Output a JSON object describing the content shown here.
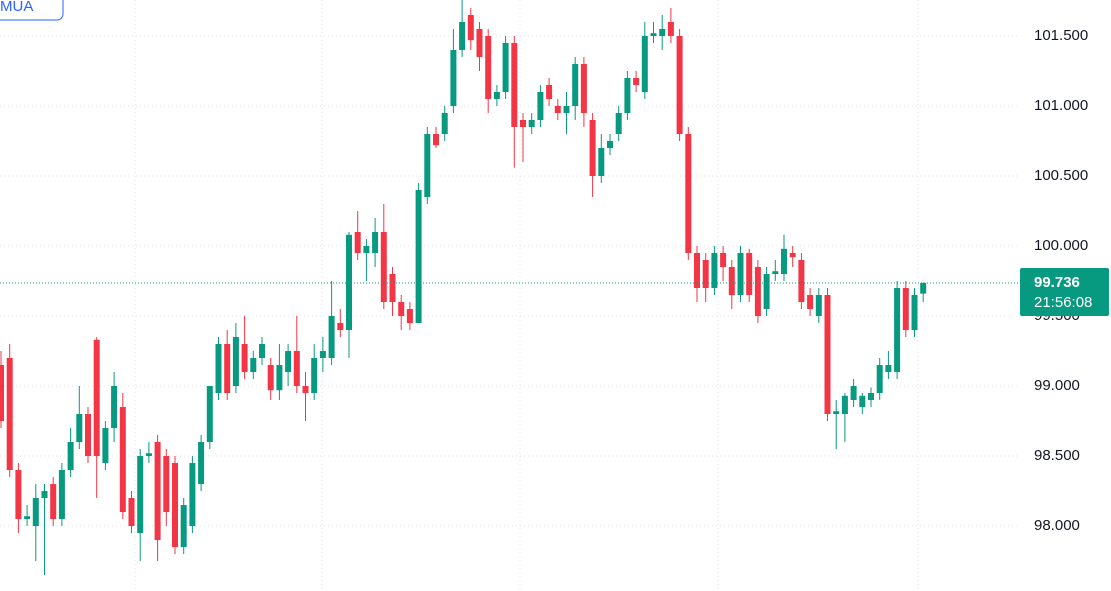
{
  "buy_button": "MUA",
  "chart_data": {
    "type": "candlestick",
    "up_color": "#089981",
    "down_color": "#f23645",
    "grid": true,
    "ylim": [
      97.536,
      101.757
    ],
    "yticks": [
      {
        "value": 98,
        "label": "98.000"
      },
      {
        "value": 98.5,
        "label": "98.500"
      },
      {
        "value": 99,
        "label": "99.000"
      },
      {
        "value": 99.5,
        "label": "99.500"
      },
      {
        "value": 100,
        "label": "100.000"
      },
      {
        "value": 100.5,
        "label": "100.500"
      },
      {
        "value": 101,
        "label": "101.000"
      },
      {
        "value": 101.5,
        "label": "101.500"
      }
    ],
    "last_price": 99.736,
    "countdown": "21:56:08",
    "open": [
      99.15,
      99.2,
      98.4,
      98.05,
      98.0,
      98.2,
      98.3,
      98.05,
      98.4,
      98.6,
      98.8,
      99.33,
      98.45,
      98.7,
      98.85,
      98.2,
      97.95,
      98.5,
      98.6,
      98.5,
      98.45,
      97.85,
      98.0,
      98.3,
      98.6,
      98.95,
      99.3,
      99.0,
      99.3,
      99.1,
      99.2,
      99.15,
      98.97,
      99.1,
      99.25,
      99.0,
      98.95,
      99.2,
      99.2,
      99.45,
      99.4,
      100.1,
      99.95,
      99.95,
      100.1,
      99.8,
      99.6,
      99.55,
      99.45,
      100.35,
      100.8,
      100.8,
      101.0,
      101.4,
      101.65,
      101.55,
      101.5,
      101.05,
      101.1,
      101.45,
      100.9,
      100.85,
      100.9,
      101.15,
      101.0,
      100.95,
      101.0,
      101.3,
      100.9,
      100.5,
      100.7,
      100.8,
      100.95,
      101.2,
      101.1,
      101.5,
      101.5,
      101.6,
      101.5,
      100.8,
      99.95,
      99.9,
      99.7,
      99.95,
      99.85,
      99.65,
      99.95,
      99.85,
      99.55,
      99.8,
      99.8,
      99.95,
      99.9,
      99.65,
      99.5,
      99.65,
      98.8,
      98.8,
      98.9,
      98.85,
      98.9,
      98.95,
      99.1,
      99.1,
      99.7,
      99.4,
      99.66
    ],
    "high": [
      99.25,
      99.3,
      98.45,
      98.15,
      98.3,
      98.3,
      98.35,
      98.45,
      98.7,
      99.0,
      98.85,
      99.35,
      98.75,
      99.1,
      98.95,
      98.25,
      98.55,
      98.6,
      98.65,
      98.55,
      98.5,
      98.2,
      98.5,
      98.65,
      99.0,
      99.35,
      99.4,
      99.45,
      99.5,
      99.25,
      99.35,
      99.2,
      99.3,
      99.3,
      99.5,
      99.1,
      99.3,
      99.35,
      99.75,
      99.55,
      100.1,
      100.25,
      100.05,
      100.2,
      100.3,
      99.85,
      99.65,
      99.6,
      100.45,
      100.85,
      100.85,
      101.0,
      101.55,
      101.76,
      101.7,
      101.6,
      101.55,
      101.15,
      101.5,
      101.5,
      100.95,
      100.95,
      101.15,
      101.2,
      101.05,
      101.1,
      101.35,
      101.35,
      100.95,
      100.8,
      100.8,
      101.0,
      101.25,
      101.25,
      101.6,
      101.6,
      101.65,
      101.7,
      101.55,
      100.85,
      100.0,
      99.95,
      100.0,
      100.0,
      99.9,
      100.0,
      99.98,
      99.9,
      99.85,
      99.9,
      100.08,
      100.0,
      99.95,
      99.7,
      99.7,
      99.7,
      98.9,
      98.95,
      99.05,
      98.95,
      98.99,
      99.2,
      99.25,
      99.75,
      99.75,
      99.7,
      99.74
    ],
    "low": [
      98.7,
      98.35,
      97.95,
      98.0,
      97.75,
      97.65,
      98.0,
      98.0,
      98.35,
      98.55,
      98.45,
      98.2,
      98.4,
      98.6,
      98.05,
      97.95,
      97.75,
      98.45,
      97.75,
      98.0,
      97.8,
      97.8,
      97.95,
      98.25,
      98.55,
      98.9,
      98.9,
      98.95,
      99.05,
      99.05,
      99.15,
      98.9,
      98.9,
      99.0,
      98.95,
      98.75,
      98.9,
      99.1,
      99.15,
      99.35,
      99.2,
      99.9,
      99.75,
      99.85,
      99.55,
      99.5,
      99.4,
      99.4,
      99.45,
      100.3,
      100.7,
      100.75,
      100.95,
      101.35,
      101.4,
      101.25,
      100.95,
      101.0,
      101.05,
      100.56,
      100.6,
      100.8,
      100.85,
      101.0,
      100.9,
      100.8,
      100.9,
      100.85,
      100.35,
      100.45,
      100.65,
      100.75,
      100.9,
      101.1,
      101.05,
      101.45,
      101.4,
      101.45,
      100.75,
      99.9,
      99.6,
      99.6,
      99.65,
      99.75,
      99.55,
      99.6,
      99.6,
      99.45,
      99.5,
      99.75,
      99.75,
      99.85,
      99.55,
      99.5,
      99.45,
      98.75,
      98.55,
      98.6,
      98.85,
      98.8,
      98.85,
      98.9,
      99.05,
      99.05,
      99.35,
      99.35,
      99.6
    ],
    "close": [
      98.75,
      98.4,
      98.05,
      98.07,
      98.2,
      98.25,
      98.05,
      98.4,
      98.6,
      98.8,
      98.5,
      98.5,
      98.7,
      99.0,
      98.1,
      98.0,
      98.5,
      98.52,
      97.9,
      98.1,
      97.85,
      98.15,
      98.45,
      98.6,
      99.0,
      99.3,
      98.95,
      99.35,
      99.1,
      99.2,
      99.3,
      98.97,
      99.15,
      99.25,
      99.0,
      98.95,
      99.2,
      99.25,
      99.5,
      99.4,
      100.08,
      99.95,
      100.0,
      100.1,
      99.6,
      99.6,
      99.5,
      99.45,
      100.4,
      100.8,
      100.72,
      100.95,
      101.4,
      101.6,
      101.47,
      101.35,
      101.05,
      101.1,
      101.45,
      100.85,
      100.85,
      100.9,
      101.1,
      101.05,
      100.95,
      101.0,
      101.3,
      100.95,
      100.5,
      100.7,
      100.75,
      100.95,
      101.2,
      101.15,
      101.5,
      101.52,
      101.55,
      101.5,
      100.8,
      99.95,
      99.7,
      99.7,
      99.95,
      99.85,
      99.65,
      99.95,
      99.65,
      99.5,
      99.8,
      99.82,
      99.98,
      99.92,
      99.6,
      99.55,
      99.65,
      98.8,
      98.82,
      98.93,
      99.0,
      98.93,
      98.95,
      99.15,
      99.15,
      99.7,
      99.4,
      99.65,
      99.736
    ]
  }
}
